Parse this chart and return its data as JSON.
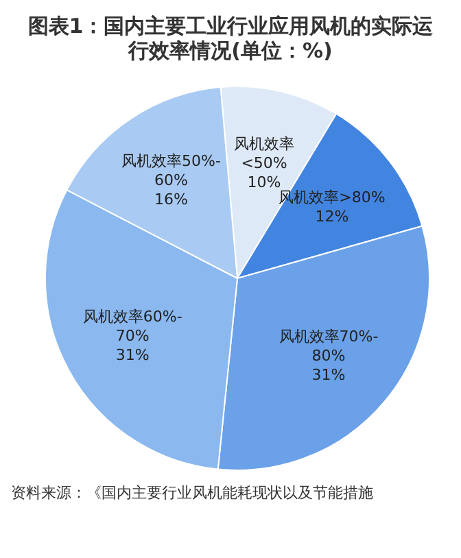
{
  "chart_data": {
    "type": "pie",
    "title": "图表1：国内主要工业行业应用风机的实际运行效率情况(单位：%)",
    "categories": [
      "风机效率<50%",
      "风机效率>80%",
      "风机效率70%-80%",
      "风机效率60%-70%",
      "风机效率50%-60%"
    ],
    "values": [
      10,
      12,
      31,
      31,
      16
    ],
    "colors": [
      "#dde9f7",
      "#4285e0",
      "#6aa1e8",
      "#8ab8ef",
      "#a9cbf3"
    ],
    "value_labels": [
      "10%",
      "12%",
      "31%",
      "31%",
      "16%"
    ],
    "annotations": [
      "资料来源：《国内主要行业风机能耗现状以及节能措施"
    ]
  }
}
